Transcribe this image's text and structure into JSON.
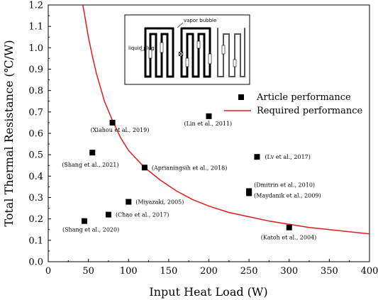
{
  "chart_data": {
    "type": "scatter",
    "xlabel": "Input Heat Load (W)",
    "ylabel": "Total Thermal Resistance (℃/W)",
    "xlim": [
      0,
      400
    ],
    "ylim": [
      0,
      1.2
    ],
    "xticks": [
      "0",
      "50",
      "100",
      "150",
      "200",
      "250",
      "300",
      "350",
      "400"
    ],
    "yticks": [
      "0.0",
      "0.1",
      "0.2",
      "0.3",
      "0.4",
      "0.5",
      "0.6",
      "0.7",
      "0.8",
      "0.9",
      "1.0",
      "1.1",
      "1.2"
    ],
    "grid": false,
    "legend_position": "right, below inset",
    "series": [
      {
        "name": "Article performance",
        "kind": "scatter",
        "marker": "square",
        "color": "#000000",
        "points": [
          {
            "label": "(Xiahou et al., 2019)",
            "x": 80,
            "y": 0.65
          },
          {
            "label": "(Lin et al., 2011)",
            "x": 200,
            "y": 0.68
          },
          {
            "label": "(Shang et al., 2021)",
            "x": 55,
            "y": 0.51
          },
          {
            "label": "(Lv et al., 2017)",
            "x": 260,
            "y": 0.49
          },
          {
            "label": "(Aprianingsih et al., 2018)",
            "x": 120,
            "y": 0.44
          },
          {
            "label": "(Dmitrin et al., 2010)",
            "x": 250,
            "y": 0.33
          },
          {
            "label": "(Maydanik et al., 2009)",
            "x": 250,
            "y": 0.32
          },
          {
            "label": "(Miyazaki, 2005)",
            "x": 100,
            "y": 0.28
          },
          {
            "label": "(Chao et al., 2017)",
            "x": 75,
            "y": 0.22
          },
          {
            "label": "(Shang et al., 2020)",
            "x": 45,
            "y": 0.19
          },
          {
            "label": "(Katoh et al., 2004)",
            "x": 300,
            "y": 0.16
          }
        ]
      },
      {
        "name": "Required performance",
        "kind": "line",
        "color": "#e41a1c",
        "x": [
          43,
          45,
          50,
          55,
          60,
          70,
          80,
          90,
          100,
          120,
          140,
          160,
          180,
          200,
          225,
          250,
          275,
          300,
          325,
          350,
          375,
          400
        ],
        "y": [
          1.2,
          1.16,
          1.05,
          0.96,
          0.88,
          0.75,
          0.66,
          0.58,
          0.52,
          0.44,
          0.38,
          0.33,
          0.29,
          0.26,
          0.23,
          0.21,
          0.19,
          0.175,
          0.16,
          0.15,
          0.14,
          0.13
        ]
      }
    ],
    "inset": {
      "annotations": [
        "vapor bubble",
        "liquid plug"
      ]
    }
  }
}
